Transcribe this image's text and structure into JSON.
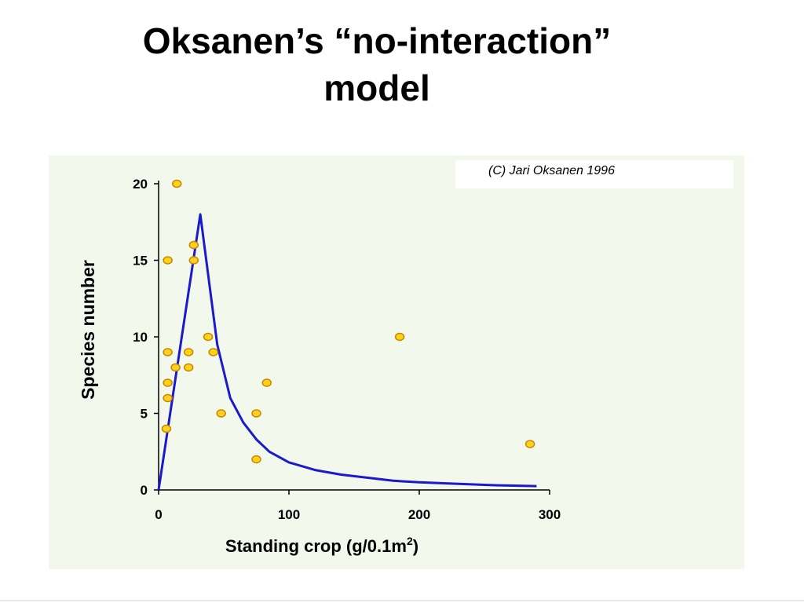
{
  "slide": {
    "title_line1": "Oksanen’s “no-interaction”",
    "title_line2": "model"
  },
  "colors": {
    "panel_bg": "#f2f8ec",
    "curve": "#1a1acc",
    "point_fill": "#ffd21a",
    "point_stroke": "#c88400",
    "axis": "#000000"
  },
  "chart_data": {
    "type": "scatter",
    "title": "",
    "copyright": "(C) Jari Oksanen 1996",
    "xlabel": "Standing crop (g/0.1m",
    "xlabel_sup": "2",
    "xlabel_close": ")",
    "ylabel": "Species number",
    "xlim": [
      0,
      300
    ],
    "ylim": [
      0,
      20
    ],
    "x_ticks": [
      0,
      100,
      200,
      300
    ],
    "y_ticks": [
      0,
      5,
      10,
      15,
      20
    ],
    "grid": false,
    "series": [
      {
        "kind": "points",
        "points": [
          [
            14,
            20
          ],
          [
            7,
            15
          ],
          [
            27,
            16
          ],
          [
            27,
            15
          ],
          [
            7,
            9
          ],
          [
            7,
            7
          ],
          [
            7,
            6
          ],
          [
            6,
            4
          ],
          [
            13,
            8
          ],
          [
            23,
            9
          ],
          [
            23,
            8
          ],
          [
            38,
            10
          ],
          [
            42,
            9
          ],
          [
            48,
            5
          ],
          [
            75,
            5
          ],
          [
            75,
            2
          ],
          [
            83,
            7
          ],
          [
            185,
            10
          ],
          [
            285,
            3
          ]
        ]
      },
      {
        "kind": "line",
        "points": [
          [
            0,
            0
          ],
          [
            32,
            18
          ],
          [
            45,
            9.5
          ],
          [
            55,
            6
          ],
          [
            65,
            4.4
          ],
          [
            75,
            3.3
          ],
          [
            85,
            2.5
          ],
          [
            100,
            1.8
          ],
          [
            120,
            1.3
          ],
          [
            140,
            1.0
          ],
          [
            160,
            0.8
          ],
          [
            180,
            0.6
          ],
          [
            200,
            0.5
          ],
          [
            230,
            0.4
          ],
          [
            260,
            0.3
          ],
          [
            290,
            0.25
          ]
        ]
      }
    ]
  }
}
